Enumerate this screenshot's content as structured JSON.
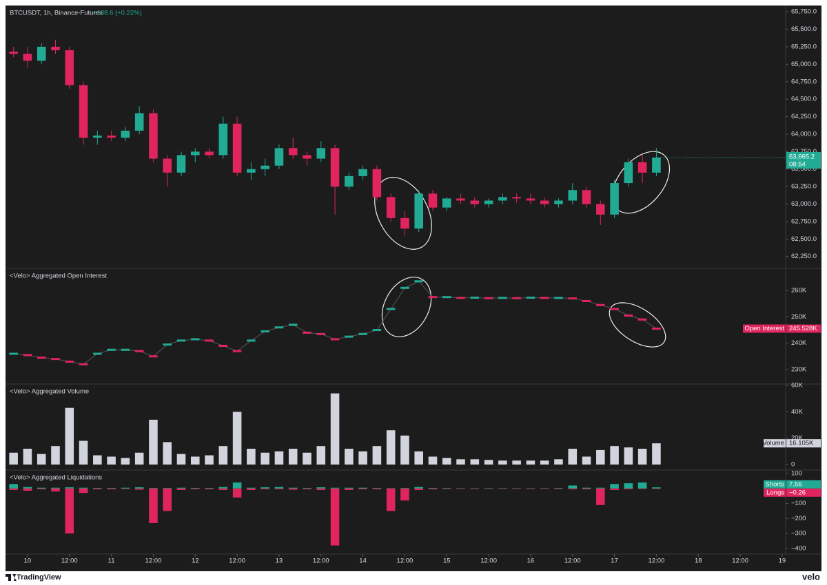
{
  "chart_data": [
    {
      "type": "candlestick",
      "title": "BTCUSDT, 1h, Binance-Futures",
      "subtitle": "+138.6 (+0.22%)",
      "up_color": "#22ab94",
      "down_color": "#e0245e",
      "x": [
        -4,
        0,
        4,
        8,
        12,
        16,
        20,
        24,
        28,
        32,
        36,
        40,
        44,
        48,
        52,
        56,
        60,
        64,
        68,
        72,
        76,
        80,
        84,
        88,
        92,
        96,
        100,
        104,
        108,
        112,
        116,
        120,
        124,
        128,
        132,
        136,
        140,
        144,
        148,
        152,
        156,
        160,
        164,
        168,
        172,
        176,
        180
      ],
      "ohlc": [
        [
          65180,
          65250,
          65100,
          65150
        ],
        [
          65150,
          65250,
          64950,
          65050
        ],
        [
          65050,
          65300,
          65000,
          65250
        ],
        [
          65250,
          65350,
          65150,
          65200
        ],
        [
          65200,
          65250,
          64650,
          64700
        ],
        [
          64700,
          64750,
          63850,
          63950
        ],
        [
          63950,
          64050,
          63850,
          63980
        ],
        [
          63980,
          64050,
          63900,
          63950
        ],
        [
          63950,
          64100,
          63900,
          64050
        ],
        [
          64050,
          64400,
          64000,
          64300
        ],
        [
          64300,
          64350,
          63600,
          63650
        ],
        [
          63650,
          63700,
          63250,
          63450
        ],
        [
          63450,
          63750,
          63400,
          63700
        ],
        [
          63700,
          63800,
          63600,
          63750
        ],
        [
          63750,
          63800,
          63650,
          63700
        ],
        [
          63700,
          64250,
          63650,
          64150
        ],
        [
          64150,
          64250,
          63400,
          63450
        ],
        [
          63450,
          63600,
          63350,
          63500
        ],
        [
          63500,
          63650,
          63400,
          63550
        ],
        [
          63550,
          63850,
          63500,
          63800
        ],
        [
          63800,
          63950,
          63650,
          63700
        ],
        [
          63700,
          63750,
          63550,
          63650
        ],
        [
          63650,
          63900,
          63600,
          63800
        ],
        [
          63800,
          63850,
          62850,
          63250
        ],
        [
          63250,
          63450,
          63200,
          63400
        ],
        [
          63400,
          63550,
          63350,
          63500
        ],
        [
          63500,
          63550,
          63050,
          63100
        ],
        [
          63100,
          63150,
          62750,
          62800
        ],
        [
          62800,
          62900,
          62550,
          62650
        ],
        [
          62650,
          63200,
          62600,
          63150
        ],
        [
          63150,
          63200,
          62900,
          62950
        ],
        [
          62950,
          63100,
          62900,
          63080
        ],
        [
          63080,
          63150,
          63000,
          63050
        ],
        [
          63050,
          63100,
          62950,
          63000
        ],
        [
          63000,
          63080,
          62950,
          63050
        ],
        [
          63050,
          63150,
          63000,
          63100
        ],
        [
          63100,
          63150,
          63020,
          63080
        ],
        [
          63080,
          63150,
          63000,
          63050
        ],
        [
          63050,
          63100,
          62950,
          63000
        ],
        [
          63000,
          63080,
          62950,
          63050
        ],
        [
          63050,
          63300,
          63000,
          63200
        ],
        [
          63200,
          63250,
          62950,
          63000
        ],
        [
          63000,
          63050,
          62700,
          62850
        ],
        [
          62850,
          63350,
          62800,
          63300
        ],
        [
          63300,
          63650,
          63250,
          63600
        ],
        [
          63600,
          63700,
          63300,
          63450
        ],
        [
          63450,
          63800,
          63400,
          63665.2
        ]
      ],
      "last_label": "63,665.2",
      "countdown": "08:54",
      "ylim": [
        62080,
        65840
      ],
      "yticks": [
        {
          "value": 62250,
          "label": "62,250.0"
        },
        {
          "value": 62500,
          "label": "62,500.0"
        },
        {
          "value": 62750,
          "label": "62,750.0"
        },
        {
          "value": 63000,
          "label": "63,000.0"
        },
        {
          "value": 63250,
          "label": "63,250.0"
        },
        {
          "value": 63500,
          "label": "63,500.0"
        },
        {
          "value": 63750,
          "label": "63,750.0"
        },
        {
          "value": 64000,
          "label": "64,000.0"
        },
        {
          "value": 64250,
          "label": "64,250.0"
        },
        {
          "value": 64500,
          "label": "64,500.0"
        },
        {
          "value": 64750,
          "label": "64,750.0"
        },
        {
          "value": 65000,
          "label": "65,000.0"
        },
        {
          "value": 65250,
          "label": "65,250.0"
        },
        {
          "value": 65500,
          "label": "65,500.0"
        },
        {
          "value": 65750,
          "label": "65,750.0"
        }
      ]
    },
    {
      "type": "line",
      "title": "<Velo> Aggregated Open Interest",
      "x": [
        -4,
        0,
        4,
        8,
        12,
        16,
        20,
        24,
        28,
        32,
        36,
        40,
        44,
        48,
        52,
        56,
        60,
        64,
        68,
        72,
        76,
        80,
        84,
        88,
        92,
        96,
        100,
        104,
        108,
        112,
        116,
        120,
        124,
        128,
        132,
        136,
        140,
        144,
        148,
        152,
        156,
        160,
        164,
        168,
        172,
        176,
        180
      ],
      "series": [
        {
          "name": "Open Interest",
          "up_color": "#22ab94",
          "color": "#e0245e",
          "tag_label": "245.528K",
          "values": [
            236000,
            235500,
            234500,
            234000,
            233000,
            232000,
            236000,
            237500,
            237500,
            237000,
            235000,
            239500,
            241000,
            241500,
            241000,
            239000,
            237000,
            241000,
            244500,
            246000,
            247000,
            244000,
            243500,
            241500,
            242500,
            243500,
            245000,
            253000,
            261000,
            263500,
            257500,
            257500,
            257200,
            257300,
            257100,
            257200,
            257100,
            257300,
            257200,
            257200,
            257000,
            256000,
            254500,
            253000,
            250500,
            249000,
            245528
          ]
        }
      ],
      "ylim": [
        224500,
        268400
      ],
      "yticks": [
        {
          "value": 230000,
          "label": "230K"
        },
        {
          "value": 240000,
          "label": "240K"
        },
        {
          "value": 250000,
          "label": "250K"
        },
        {
          "value": 260000,
          "label": "260K"
        }
      ]
    },
    {
      "type": "bar",
      "title": "<Velo> Aggregated Volume",
      "x": [
        -4,
        0,
        4,
        8,
        12,
        16,
        20,
        24,
        28,
        32,
        36,
        40,
        44,
        48,
        52,
        56,
        60,
        64,
        68,
        72,
        76,
        80,
        84,
        88,
        92,
        96,
        100,
        104,
        108,
        112,
        116,
        120,
        124,
        128,
        132,
        136,
        140,
        144,
        148,
        152,
        156,
        160,
        164,
        168,
        172,
        176,
        180
      ],
      "series": [
        {
          "name": "Volume",
          "color": "#d1d4dc",
          "tag_label": "16.105K",
          "values": [
            9000,
            12000,
            8000,
            14000,
            43000,
            18000,
            7000,
            6000,
            5000,
            9000,
            34000,
            17000,
            8000,
            6000,
            7000,
            14000,
            40000,
            12000,
            9000,
            10000,
            12000,
            9000,
            14000,
            54000,
            12000,
            10000,
            14000,
            26000,
            22000,
            10000,
            6000,
            5000,
            4000,
            4000,
            3500,
            3000,
            3000,
            3000,
            3000,
            4000,
            12000,
            6000,
            11000,
            14000,
            13000,
            12000,
            16105
          ]
        }
      ],
      "ylim": [
        -4200,
        61100
      ],
      "yticks": [
        0,
        {
          "value": 20000,
          "label": "20K"
        },
        {
          "value": 40000,
          "label": "40K"
        },
        {
          "value": 60000,
          "label": "60K"
        }
      ]
    },
    {
      "type": "bar",
      "title": "<Velo> Aggregated Liquidations",
      "x": [
        -4,
        0,
        4,
        8,
        12,
        16,
        20,
        24,
        28,
        32,
        36,
        40,
        44,
        48,
        52,
        56,
        60,
        64,
        68,
        72,
        76,
        80,
        84,
        88,
        92,
        96,
        100,
        104,
        108,
        112,
        116,
        120,
        124,
        128,
        132,
        136,
        140,
        144,
        148,
        152,
        156,
        160,
        164,
        168,
        172,
        176,
        180
      ],
      "series": [
        {
          "name": "Shorts",
          "color": "#22ab94",
          "values": [
            30,
            10,
            5,
            5,
            8,
            5,
            3,
            3,
            5,
            8,
            3,
            3,
            5,
            3,
            3,
            10,
            40,
            5,
            8,
            10,
            5,
            3,
            8,
            5,
            5,
            5,
            3,
            2,
            3,
            10,
            3,
            3,
            2,
            2,
            2,
            2,
            2,
            2,
            2,
            3,
            20,
            5,
            5,
            30,
            35,
            40,
            7.56
          ]
        },
        {
          "name": "Longs",
          "color": "#e0245e",
          "tag_label": "−0.26",
          "values": [
            -10,
            -15,
            -5,
            -20,
            -300,
            -30,
            -5,
            -5,
            -3,
            -8,
            -230,
            -150,
            -10,
            -5,
            -5,
            -10,
            -60,
            -10,
            -5,
            -5,
            -8,
            -5,
            -10,
            -380,
            -10,
            -5,
            -5,
            -150,
            -80,
            -10,
            -5,
            -3,
            -2,
            -2,
            -2,
            -2,
            -2,
            -2,
            -2,
            -3,
            -5,
            -5,
            -110,
            -10,
            -5,
            -3,
            -0.26
          ]
        }
      ],
      "ylim": [
        -437,
        123
      ],
      "yticks": [
        100,
        {
          "value": -100,
          "label": "−100"
        },
        {
          "value": -200,
          "label": "−200"
        },
        {
          "value": -300,
          "label": "−300"
        },
        {
          "value": -400,
          "label": "−400"
        }
      ],
      "xlim": [
        -6.3,
        217
      ],
      "xticks": [
        {
          "value": 0,
          "label": "10"
        },
        {
          "value": 12,
          "label": "12:00"
        },
        {
          "value": 24,
          "label": "11"
        },
        {
          "value": 36,
          "label": "12:00"
        },
        {
          "value": 48,
          "label": "12"
        },
        {
          "value": 60,
          "label": "12:00"
        },
        {
          "value": 72,
          "label": "13"
        },
        {
          "value": 84,
          "label": "12:00"
        },
        {
          "value": 96,
          "label": "14"
        },
        {
          "value": 108,
          "label": "12:00"
        },
        {
          "value": 120,
          "label": "15"
        },
        {
          "value": 132,
          "label": "12:00"
        },
        {
          "value": 144,
          "label": "16"
        },
        {
          "value": 156,
          "label": "12:00"
        },
        {
          "value": 168,
          "label": "17"
        },
        {
          "value": 180,
          "label": "12:00"
        },
        {
          "value": 192,
          "label": "18"
        },
        {
          "value": 204,
          "label": "12:00"
        },
        {
          "value": 216,
          "label": "19"
        }
      ]
    }
  ],
  "footer": {
    "left": "TradingView",
    "right": "velo"
  }
}
